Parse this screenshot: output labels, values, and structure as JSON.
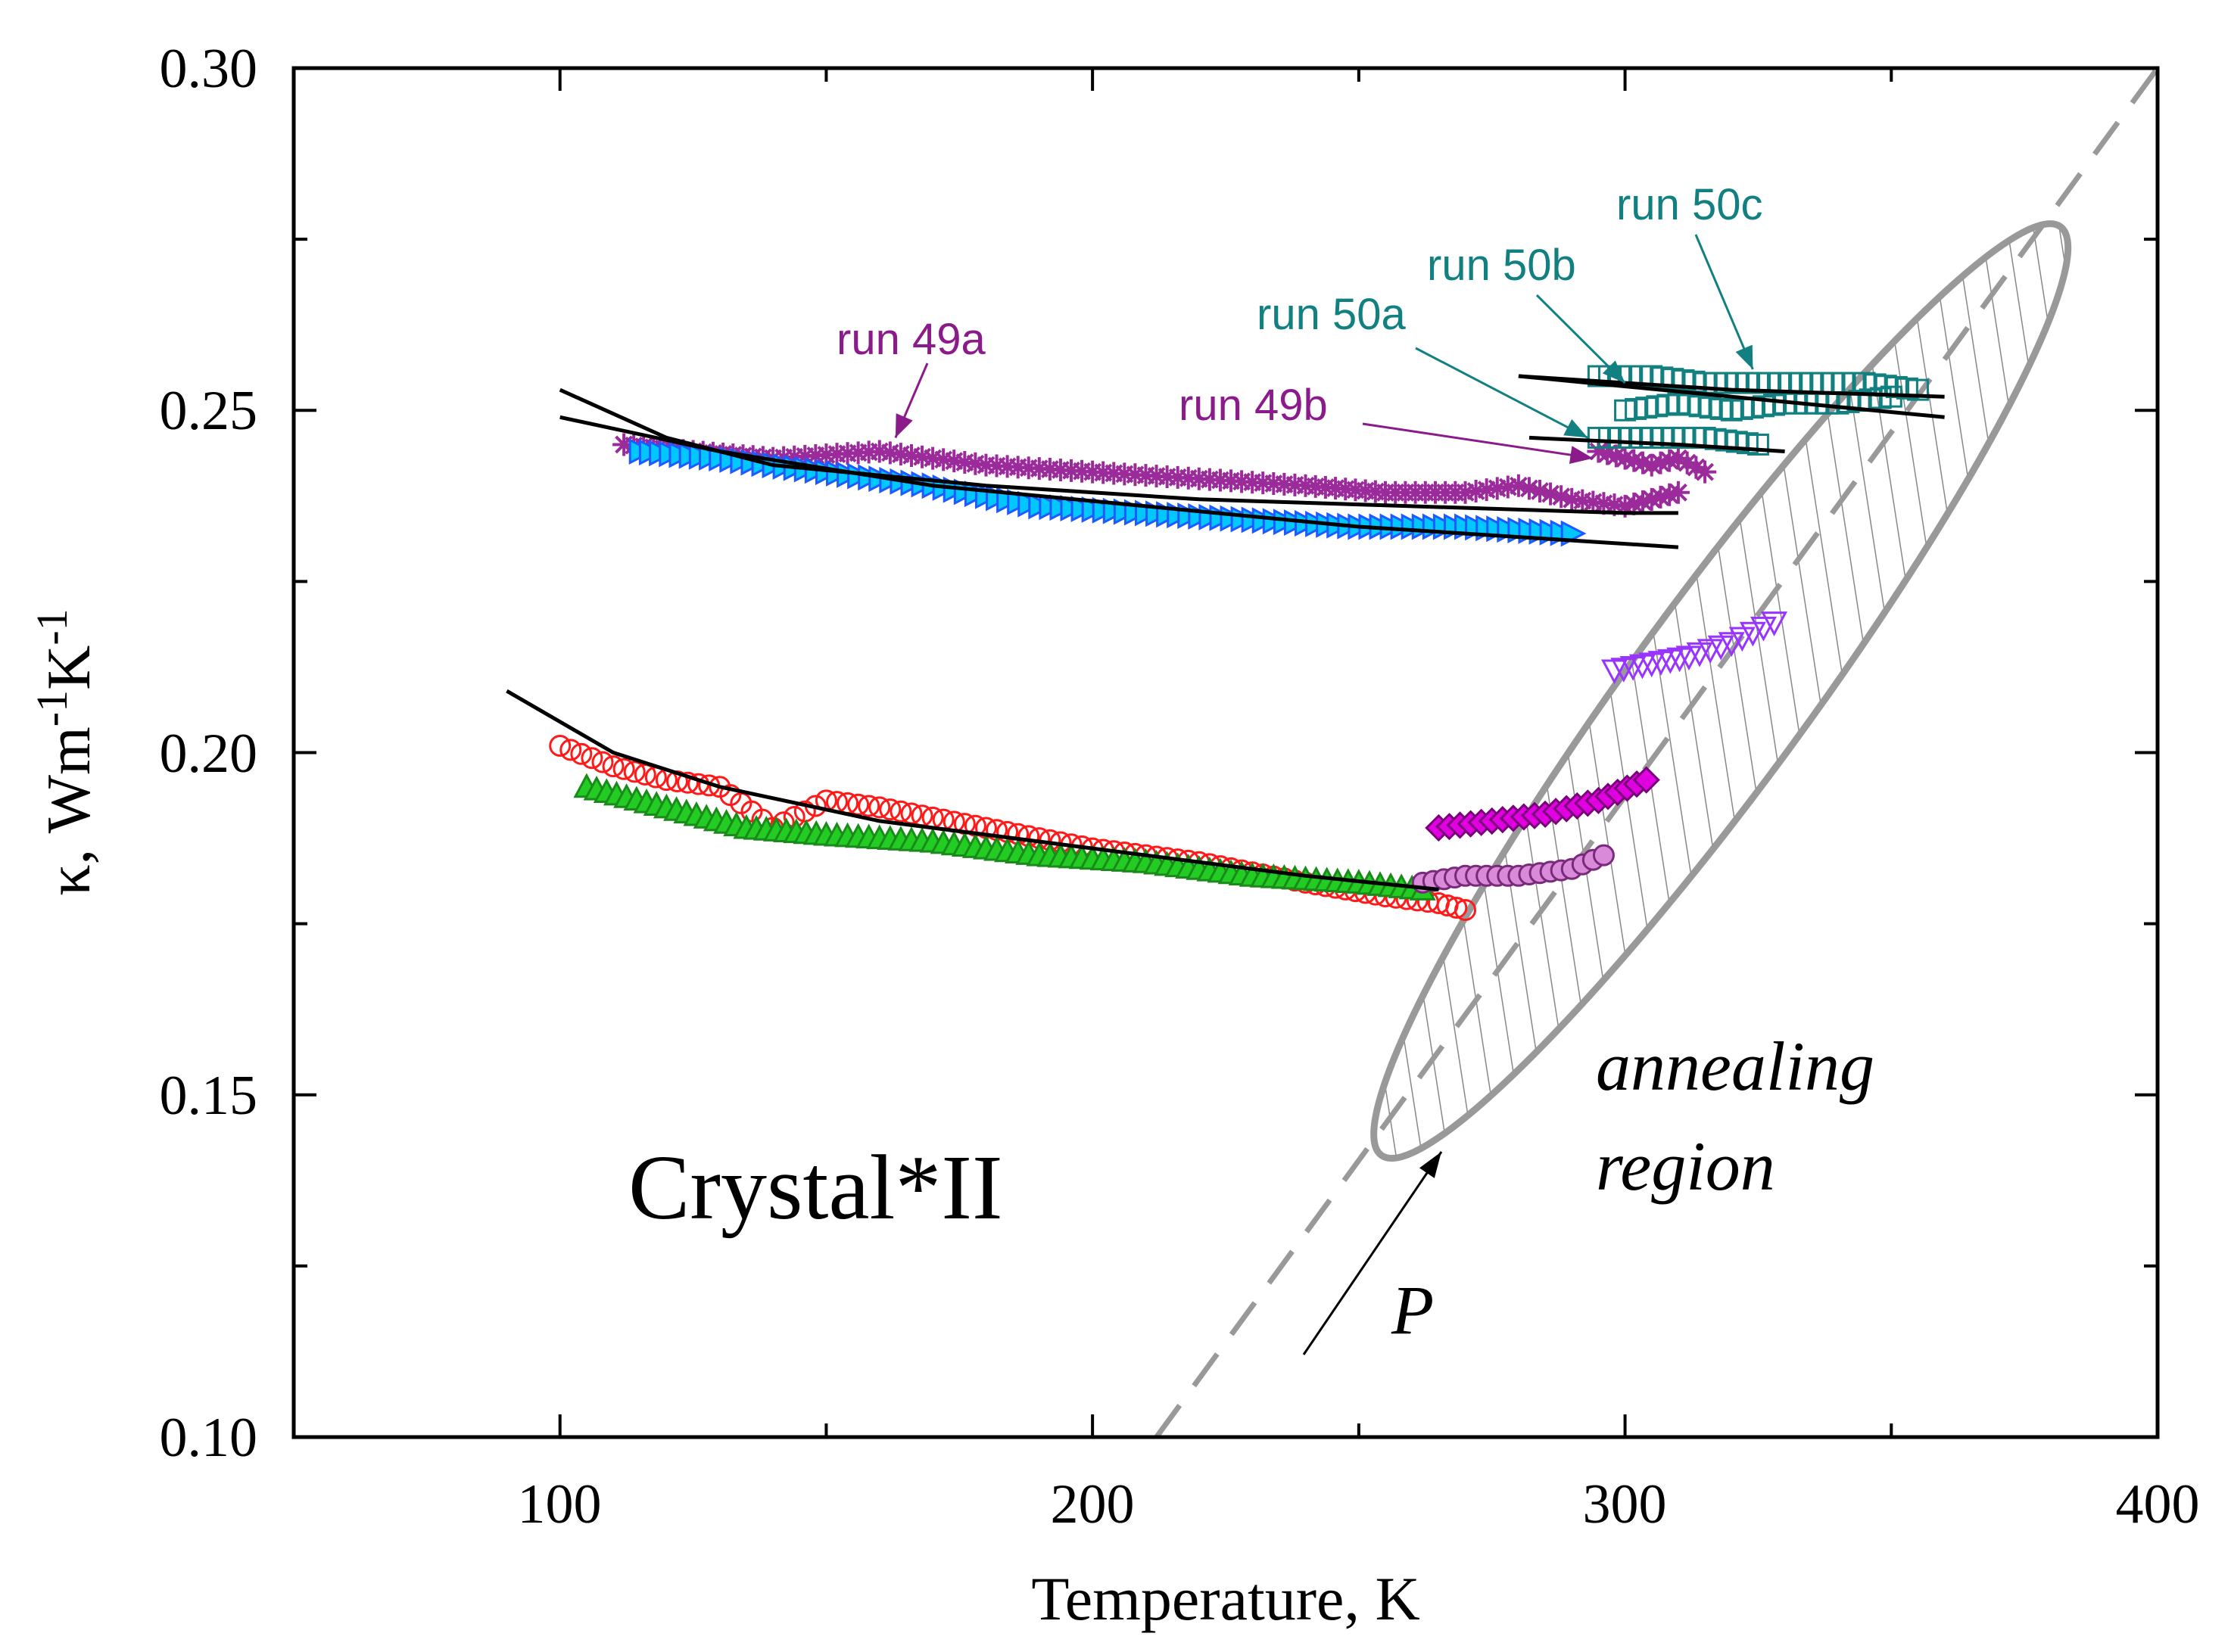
{
  "chart_data": {
    "type": "scatter",
    "xlabel": "Temperature, K",
    "ylabel": {
      "base": "κ, Wm",
      "sup1": "-1",
      "mid": "K",
      "sup2": "-1"
    },
    "xlim": [
      50,
      400
    ],
    "ylim": [
      0.1,
      0.3
    ],
    "x_ticks": [
      100,
      200,
      300,
      400
    ],
    "x_ticks_minor": [
      50,
      150,
      250,
      350
    ],
    "y_ticks": [
      0.1,
      0.15,
      0.2,
      0.25,
      0.3
    ],
    "y_ticks_minor": [
      0.125,
      0.175,
      0.225,
      0.275
    ],
    "y_tick_labels": [
      "0.10",
      "0.15",
      "0.20",
      "0.25",
      "0.30"
    ],
    "x_tick_labels": [
      "100",
      "200",
      "300",
      "400"
    ],
    "colors": {
      "run49": "#8b1a8b",
      "run50": "#128080",
      "blue": "#1e5aff",
      "cyan": "#00c8ff",
      "red": "#ff1a1a",
      "green": "#22cc22",
      "orchid": "#d98ad9",
      "magenta": "#e000e0",
      "violet": "#9933ff",
      "teal": "#128080",
      "dashed": "#999999",
      "ellipse": "#999999"
    },
    "series": [
      {
        "name": "run 49a",
        "marker": "star",
        "color": "#9b2a9b",
        "points": [
          [
            112,
            0.245
          ],
          [
            125,
            0.244
          ],
          [
            140,
            0.243
          ],
          [
            160,
            0.244
          ],
          [
            180,
            0.242
          ],
          [
            200,
            0.241
          ],
          [
            220,
            0.24
          ],
          [
            240,
            0.239
          ],
          [
            255,
            0.238
          ],
          [
            270,
            0.238
          ],
          [
            280,
            0.239
          ],
          [
            290,
            0.237
          ],
          [
            300,
            0.236
          ],
          [
            305,
            0.237
          ],
          [
            310,
            0.238
          ]
        ]
      },
      {
        "name": "run 49b",
        "marker": "star",
        "color": "#9b2a9b",
        "points": [
          [
            295,
            0.244
          ],
          [
            300,
            0.243
          ],
          [
            305,
            0.242
          ],
          [
            310,
            0.243
          ],
          [
            315,
            0.241
          ]
        ]
      },
      {
        "name": "run 49 triangles",
        "marker": "tri-right",
        "color": "#1e5aff",
        "fill": "#00c8ff",
        "points": [
          [
            115,
            0.244
          ],
          [
            130,
            0.243
          ],
          [
            150,
            0.241
          ],
          [
            170,
            0.239
          ],
          [
            190,
            0.236
          ],
          [
            210,
            0.235
          ],
          [
            230,
            0.234
          ],
          [
            250,
            0.233
          ],
          [
            270,
            0.233
          ],
          [
            290,
            0.232
          ]
        ]
      },
      {
        "name": "run 50a",
        "marker": "square",
        "color": "#128080",
        "points": [
          [
            295,
            0.246
          ],
          [
            305,
            0.246
          ],
          [
            315,
            0.246
          ],
          [
            325,
            0.245
          ]
        ]
      },
      {
        "name": "run 50b",
        "marker": "square",
        "color": "#128080",
        "points": [
          [
            300,
            0.25
          ],
          [
            310,
            0.251
          ],
          [
            320,
            0.25
          ],
          [
            330,
            0.251
          ],
          [
            340,
            0.251
          ],
          [
            350,
            0.252
          ]
        ]
      },
      {
        "name": "run 50c",
        "marker": "square",
        "color": "#128080",
        "points": [
          [
            295,
            0.255
          ],
          [
            305,
            0.255
          ],
          [
            315,
            0.254
          ],
          [
            325,
            0.254
          ],
          [
            335,
            0.254
          ],
          [
            345,
            0.254
          ],
          [
            355,
            0.253
          ]
        ]
      },
      {
        "name": "red circles",
        "marker": "circle-open",
        "color": "#ff1a1a",
        "points": [
          [
            100,
            0.201
          ],
          [
            110,
            0.198
          ],
          [
            120,
            0.196
          ],
          [
            130,
            0.195
          ],
          [
            140,
            0.189
          ],
          [
            150,
            0.193
          ],
          [
            160,
            0.192
          ],
          [
            180,
            0.189
          ],
          [
            200,
            0.186
          ],
          [
            220,
            0.184
          ],
          [
            240,
            0.181
          ],
          [
            255,
            0.179
          ],
          [
            265,
            0.178
          ],
          [
            270,
            0.177
          ]
        ]
      },
      {
        "name": "green triangles",
        "marker": "tri-up",
        "color": "#1a8a1a",
        "fill": "#22cc22",
        "points": [
          [
            105,
            0.195
          ],
          [
            120,
            0.192
          ],
          [
            135,
            0.189
          ],
          [
            150,
            0.188
          ],
          [
            170,
            0.187
          ],
          [
            190,
            0.185
          ],
          [
            210,
            0.184
          ],
          [
            230,
            0.182
          ],
          [
            250,
            0.181
          ],
          [
            262,
            0.18
          ]
        ]
      },
      {
        "name": "orchid circles",
        "marker": "circle",
        "color": "#7a2a7a",
        "fill": "#d98ad9",
        "points": [
          [
            262,
            0.181
          ],
          [
            270,
            0.182
          ],
          [
            280,
            0.182
          ],
          [
            290,
            0.183
          ],
          [
            296,
            0.185
          ]
        ]
      },
      {
        "name": "magenta diamonds",
        "marker": "diamond",
        "color": "#7a007a",
        "fill": "#e000e0",
        "points": [
          [
            265,
            0.189
          ],
          [
            275,
            0.19
          ],
          [
            285,
            0.191
          ],
          [
            295,
            0.193
          ],
          [
            304,
            0.196
          ]
        ]
      },
      {
        "name": "violet triangles",
        "marker": "tri-down-open",
        "color": "#9933ff",
        "points": [
          [
            298,
            0.212
          ],
          [
            305,
            0.213
          ],
          [
            312,
            0.214
          ],
          [
            320,
            0.216
          ],
          [
            328,
            0.219
          ]
        ]
      }
    ],
    "fit_curves": [
      [
        [
          100,
          0.253
        ],
        [
          120,
          0.246
        ],
        [
          140,
          0.242
        ],
        [
          180,
          0.239
        ],
        [
          220,
          0.237
        ],
        [
          260,
          0.236
        ],
        [
          300,
          0.235
        ],
        [
          310,
          0.235
        ]
      ],
      [
        [
          100,
          0.249
        ],
        [
          130,
          0.244
        ],
        [
          170,
          0.239
        ],
        [
          210,
          0.236
        ],
        [
          250,
          0.233
        ],
        [
          290,
          0.231
        ],
        [
          310,
          0.23
        ]
      ],
      [
        [
          90,
          0.209
        ],
        [
          110,
          0.2
        ],
        [
          130,
          0.195
        ],
        [
          160,
          0.19
        ],
        [
          200,
          0.186
        ],
        [
          240,
          0.182
        ],
        [
          265,
          0.18
        ]
      ],
      [
        [
          280,
          0.255
        ],
        [
          320,
          0.253
        ],
        [
          360,
          0.252
        ]
      ],
      [
        [
          280,
          0.255
        ],
        [
          320,
          0.252
        ],
        [
          360,
          0.249
        ]
      ],
      [
        [
          282,
          0.246
        ],
        [
          310,
          0.245
        ],
        [
          330,
          0.244
        ]
      ]
    ],
    "diagonal_line": [
      [
        212,
        0.1
      ],
      [
        400,
        0.3
      ]
    ],
    "ellipse": {
      "center": [
        318,
        0.209
      ],
      "orientation": "tilted along diagonal"
    },
    "annotations": [
      {
        "text": "run 49a",
        "color": "#8b1a8b",
        "arrow_to": [
          163,
          0.246
        ]
      },
      {
        "text": "run 49b",
        "color": "#8b1a8b",
        "arrow_to": [
          294,
          0.243
        ]
      },
      {
        "text": "run 50a",
        "color": "#128080",
        "arrow_to": [
          293,
          0.246
        ]
      },
      {
        "text": "run 50b",
        "color": "#128080",
        "arrow_to": [
          300,
          0.254
        ]
      },
      {
        "text": "run 50c",
        "color": "#128080",
        "arrow_to": [
          324,
          0.256
        ]
      }
    ],
    "sample_label": "Crystal*II",
    "region_label_line1": "annealing",
    "region_label_line2": "region",
    "pressure_label": "P"
  }
}
